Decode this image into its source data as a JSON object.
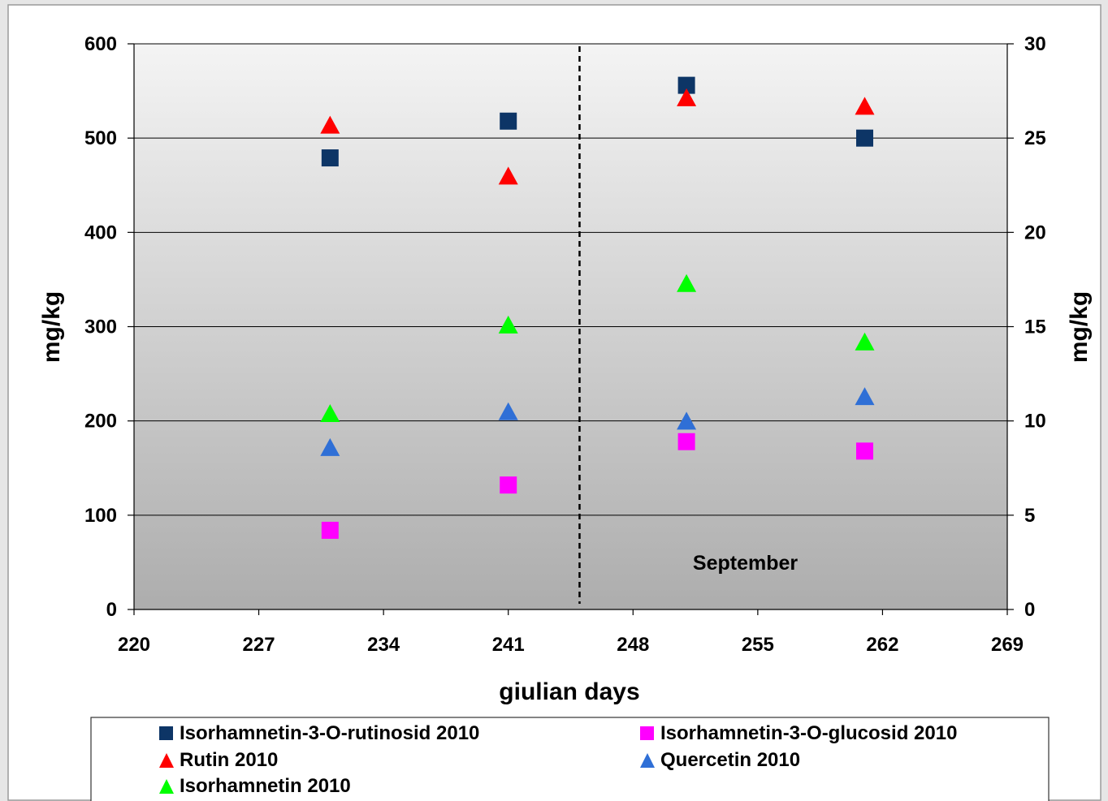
{
  "chart_data": {
    "type": "scatter",
    "title": "",
    "xlabel": "giulian days",
    "ylabel_left": "mg/kg",
    "ylabel_right": "mg/kg",
    "xlim": [
      220,
      269
    ],
    "xticks": [
      220,
      227,
      234,
      241,
      248,
      255,
      262,
      269
    ],
    "ylim_left": [
      0,
      600
    ],
    "yticks_left": [
      0,
      100,
      200,
      300,
      400,
      500,
      600
    ],
    "ylim_right": [
      0,
      30
    ],
    "yticks_right": [
      0,
      5,
      10,
      15,
      20,
      25,
      30
    ],
    "grid": "horizontal",
    "plot_background": "gradient light gray to dark gray",
    "vertical_marker": {
      "x": 245,
      "style": "dashed",
      "color": "#000000"
    },
    "annotations": [
      {
        "text": "September",
        "x": 254.3,
        "y": 42
      }
    ],
    "legend_position": "bottom",
    "series": [
      {
        "name": "Isorhamnetin-3-O-rutinosid 2010",
        "marker": "square",
        "color": "#0d3566",
        "axis": "left",
        "x": [
          231,
          241,
          251,
          261
        ],
        "y": [
          479,
          518,
          556,
          500
        ]
      },
      {
        "name": "Isorhamnetin-3-O-glucosid 2010",
        "marker": "square",
        "color": "#ff00ff",
        "axis": "right",
        "x": [
          231,
          241,
          251,
          261
        ],
        "y": [
          4.2,
          6.6,
          8.9,
          8.4
        ]
      },
      {
        "name": "Rutin 2010",
        "marker": "triangle",
        "color": "#ff0000",
        "axis": "left",
        "x": [
          231,
          241,
          251,
          261
        ],
        "y": [
          512,
          458,
          541,
          532
        ]
      },
      {
        "name": "Quercetin 2010",
        "marker": "triangle",
        "color": "#2f6fd6",
        "axis": "right",
        "x": [
          231,
          241,
          251,
          261
        ],
        "y": [
          8.5,
          10.4,
          9.9,
          11.2
        ]
      },
      {
        "name": "Isorhamnetin 2010",
        "marker": "triangle",
        "color": "#00ff00",
        "axis": "right",
        "x": [
          231,
          241,
          251,
          261
        ],
        "y": [
          10.3,
          15.0,
          17.2,
          14.1
        ]
      }
    ]
  }
}
